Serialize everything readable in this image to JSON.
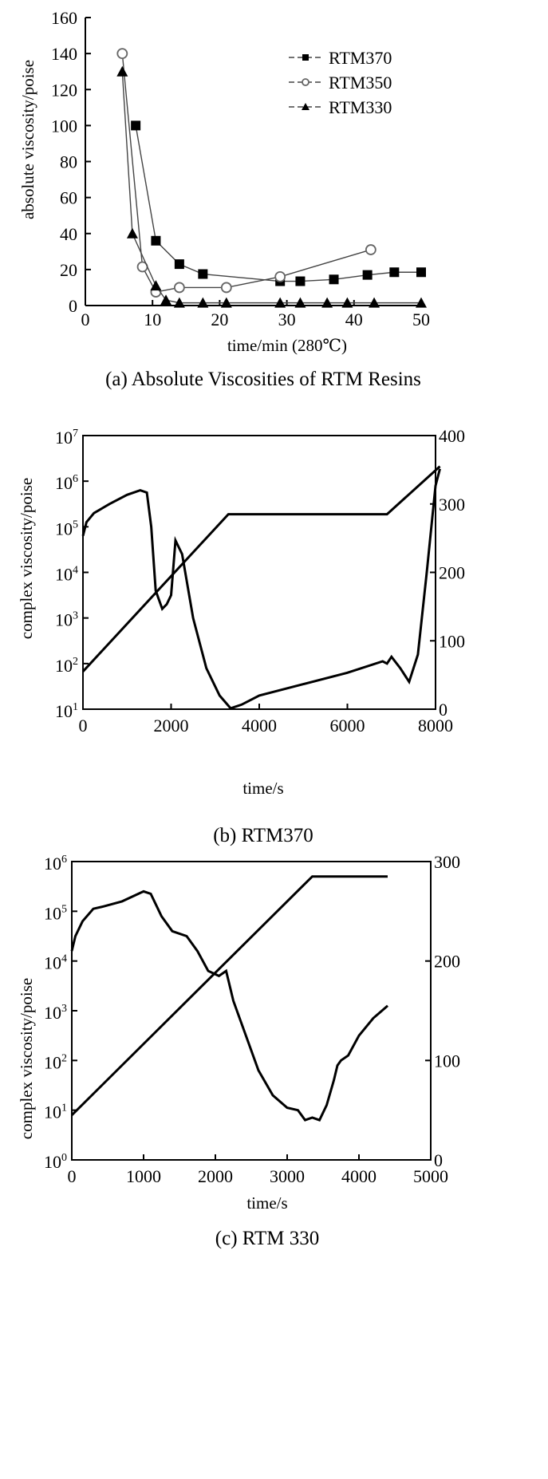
{
  "chart_data": [
    {
      "type": "scatter",
      "caption": "(a)  Absolute Viscosities of RTM Resins",
      "xlabel": "time/min  (280℃)",
      "ylabel": "absolute viscosity/poise",
      "xlim": [
        0,
        50
      ],
      "ylim": [
        0,
        160
      ],
      "xticks": [
        0,
        10,
        20,
        30,
        40,
        50
      ],
      "yticks": [
        0,
        20,
        40,
        60,
        80,
        100,
        120,
        140,
        160
      ],
      "legend_position": "top-right",
      "series": [
        {
          "name": "RTM370",
          "marker": "filled-square",
          "x": [
            7.5,
            10.5,
            14,
            17.5,
            29,
            32,
            37,
            42,
            46,
            50
          ],
          "y": [
            100,
            36,
            23,
            17.5,
            13.5,
            13.5,
            14.5,
            17,
            18.5,
            18.5
          ]
        },
        {
          "name": "RTM350",
          "marker": "open-circle",
          "x": [
            5.5,
            8.5,
            10.5,
            14,
            21,
            29,
            42.5
          ],
          "y": [
            140,
            21.5,
            7.5,
            10,
            10,
            16,
            31
          ]
        },
        {
          "name": "RTM330",
          "marker": "filled-triangle",
          "x": [
            5.5,
            7,
            10.5,
            12,
            14,
            17.5,
            21,
            29,
            32,
            36,
            39,
            43,
            50
          ],
          "y": [
            130,
            40,
            11,
            3,
            1.5,
            1.5,
            1.5,
            1.5,
            1.5,
            1.5,
            1.5,
            1.5,
            1.5
          ]
        }
      ]
    },
    {
      "type": "line",
      "caption": "(b)  RTM370",
      "xlabel": "time/s",
      "ylabel": "complex viscosity/poise",
      "xlim": [
        0,
        8000
      ],
      "ylim_log10": [
        1,
        7
      ],
      "xticks": [
        0,
        2000,
        4000,
        6000,
        8000
      ],
      "yticks_exp": [
        1,
        2,
        3,
        4,
        5,
        6,
        7
      ],
      "y2ticks": [
        0,
        100,
        200,
        300,
        400
      ],
      "y2lim": [
        0,
        400
      ],
      "series": [
        {
          "axis": "left",
          "x": [
            0,
            80,
            250,
            600,
            1000,
            1300,
            1450,
            1550,
            1650,
            1800,
            1900,
            2000,
            2100,
            2250,
            2500,
            2800,
            3100,
            3350,
            3600,
            4000,
            5000,
            6000,
            6800,
            6900,
            7000,
            7200,
            7400,
            7600,
            7800,
            8000,
            8100
          ],
          "log10y": [
            4.8,
            5.1,
            5.3,
            5.5,
            5.7,
            5.8,
            5.75,
            5.0,
            3.6,
            3.2,
            3.3,
            3.5,
            4.7,
            4.4,
            3.0,
            1.9,
            1.3,
            1.02,
            1.1,
            1.3,
            1.55,
            1.8,
            2.05,
            2.0,
            2.15,
            1.9,
            1.6,
            2.2,
            4.0,
            5.9,
            6.27
          ]
        },
        {
          "axis": "right",
          "x": [
            0,
            3300,
            6900,
            8100
          ],
          "y": [
            55,
            285,
            285,
            355
          ]
        }
      ]
    },
    {
      "type": "line",
      "caption": "(c)  RTM 330",
      "xlabel": "time/s",
      "ylabel": "complex viscosity/poise",
      "xlim": [
        0,
        5000
      ],
      "ylim_log10": [
        0,
        6
      ],
      "xticks": [
        0,
        1000,
        2000,
        3000,
        4000,
        5000
      ],
      "yticks_exp": [
        0,
        1,
        2,
        3,
        4,
        5,
        6
      ],
      "y2ticks": [
        0,
        100,
        200,
        300
      ],
      "y2lim": [
        0,
        300
      ],
      "series": [
        {
          "axis": "left",
          "x": [
            0,
            50,
            150,
            300,
            450,
            700,
            1000,
            1100,
            1250,
            1400,
            1600,
            1750,
            1900,
            2050,
            2150,
            2250,
            2400,
            2600,
            2800,
            3000,
            3150,
            3250,
            3350,
            3450,
            3550,
            3650,
            3700,
            3750,
            3850,
            4000,
            4200,
            4400
          ],
          "log10y": [
            4.2,
            4.5,
            4.8,
            5.05,
            5.1,
            5.2,
            5.4,
            5.35,
            4.9,
            4.6,
            4.5,
            4.2,
            3.8,
            3.7,
            3.8,
            3.2,
            2.6,
            1.8,
            1.3,
            1.05,
            1.0,
            0.8,
            0.85,
            0.8,
            1.1,
            1.6,
            1.9,
            2.0,
            2.1,
            2.5,
            2.85,
            3.1
          ]
        },
        {
          "axis": "right",
          "x": [
            0,
            3350,
            4400
          ],
          "y": [
            45,
            285,
            285
          ]
        }
      ]
    }
  ]
}
